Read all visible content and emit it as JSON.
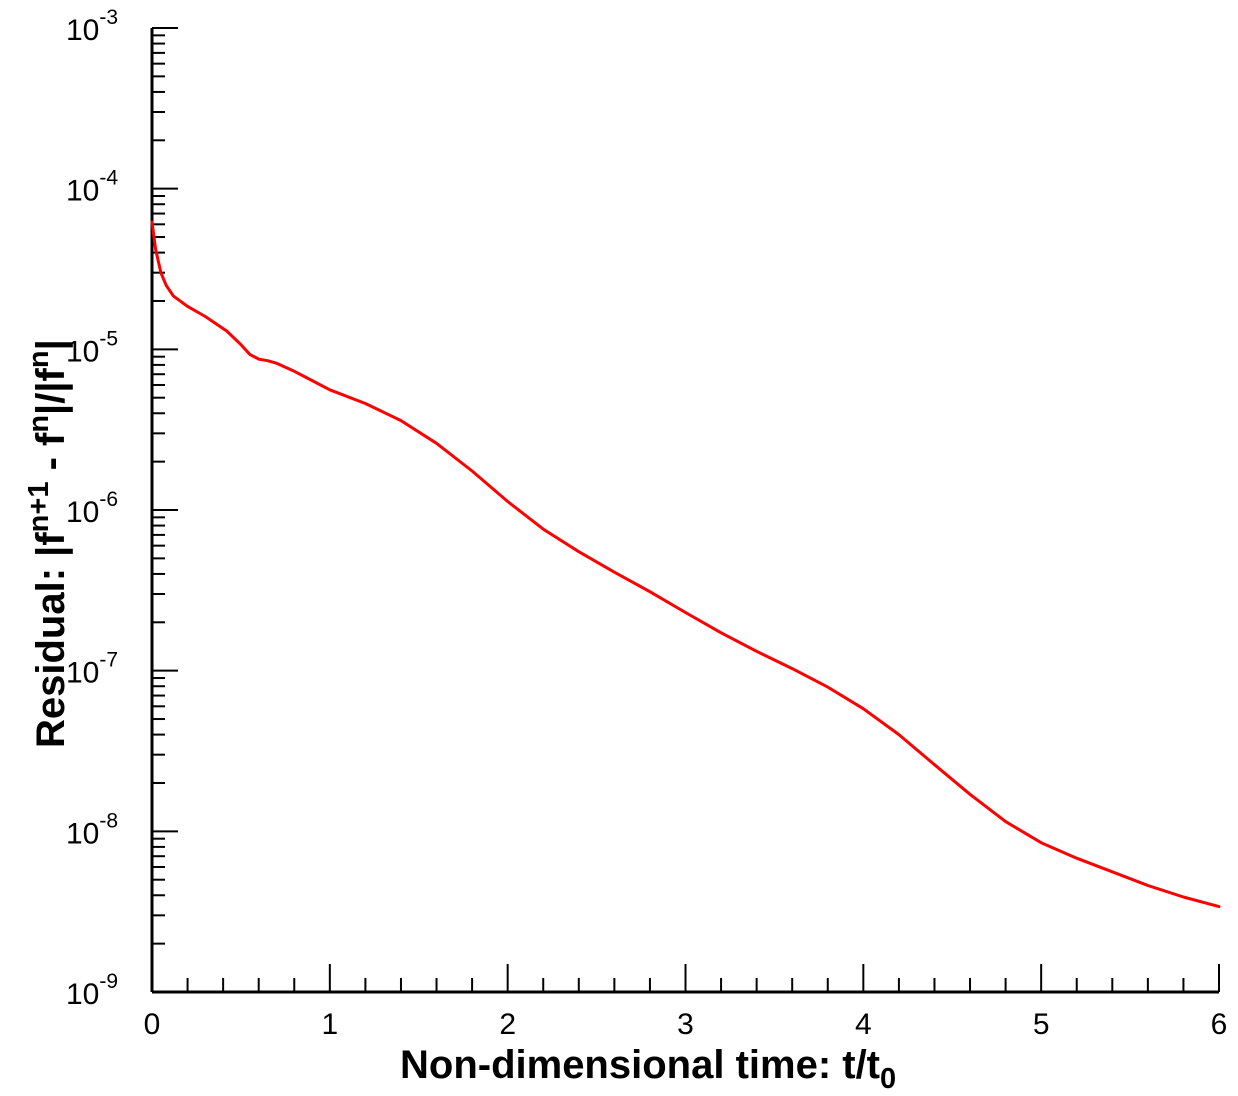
{
  "chart_data": {
    "type": "line",
    "xlabel": "Non-dimensional time: t/t",
    "xlabel_sub": "0",
    "ylabel_parts": [
      "Residual: |f",
      "n+1",
      " - f",
      "n",
      "|/|f",
      "n",
      "|"
    ],
    "xlim": [
      0,
      6
    ],
    "ylim": [
      1e-09,
      0.001
    ],
    "yscale": "log",
    "grid": false,
    "legend": "none",
    "x_ticks": [
      {
        "value": 0,
        "label": "0"
      },
      {
        "value": 1,
        "label": "1"
      },
      {
        "value": 2,
        "label": "2"
      },
      {
        "value": 3,
        "label": "3"
      },
      {
        "value": 4,
        "label": "4"
      },
      {
        "value": 5,
        "label": "5"
      },
      {
        "value": 6,
        "label": "6"
      }
    ],
    "y_ticks": [
      {
        "value": 1e-09,
        "base": "10",
        "exp": "-9"
      },
      {
        "value": 1e-08,
        "base": "10",
        "exp": "-8"
      },
      {
        "value": 1e-07,
        "base": "10",
        "exp": "-7"
      },
      {
        "value": 1e-06,
        "base": "10",
        "exp": "-6"
      },
      {
        "value": 1e-05,
        "base": "10",
        "exp": "-5"
      },
      {
        "value": 0.0001,
        "base": "10",
        "exp": "-4"
      },
      {
        "value": 0.001,
        "base": "10",
        "exp": "-3"
      }
    ],
    "series": [
      {
        "color": "#ff0000",
        "x": [
          0.0,
          0.02,
          0.05,
          0.08,
          0.12,
          0.2,
          0.3,
          0.42,
          0.5,
          0.55,
          0.6,
          0.65,
          0.7,
          0.8,
          0.9,
          1.0,
          1.2,
          1.4,
          1.6,
          1.8,
          2.0,
          2.2,
          2.4,
          2.6,
          2.8,
          3.0,
          3.2,
          3.4,
          3.6,
          3.8,
          4.0,
          4.2,
          4.4,
          4.6,
          4.8,
          5.0,
          5.2,
          5.4,
          5.6,
          5.8,
          6.0
        ],
        "y": [
          6.2e-05,
          4.2e-05,
          3e-05,
          2.5e-05,
          2.15e-05,
          1.85e-05,
          1.6e-05,
          1.3e-05,
          1.07e-05,
          9.3e-06,
          8.7e-06,
          8.5e-06,
          8.2e-06,
          7.3e-06,
          6.4e-06,
          5.6e-06,
          4.6e-06,
          3.6e-06,
          2.6e-06,
          1.75e-06,
          1.13e-06,
          7.6e-07,
          5.5e-07,
          4.1e-07,
          3.1e-07,
          2.3e-07,
          1.72e-07,
          1.32e-07,
          1.03e-07,
          7.9e-08,
          5.8e-08,
          4e-08,
          2.6e-08,
          1.7e-08,
          1.15e-08,
          8.5e-09,
          6.8e-09,
          5.6e-09,
          4.6e-09,
          3.9e-09,
          3.4e-09
        ]
      }
    ]
  }
}
